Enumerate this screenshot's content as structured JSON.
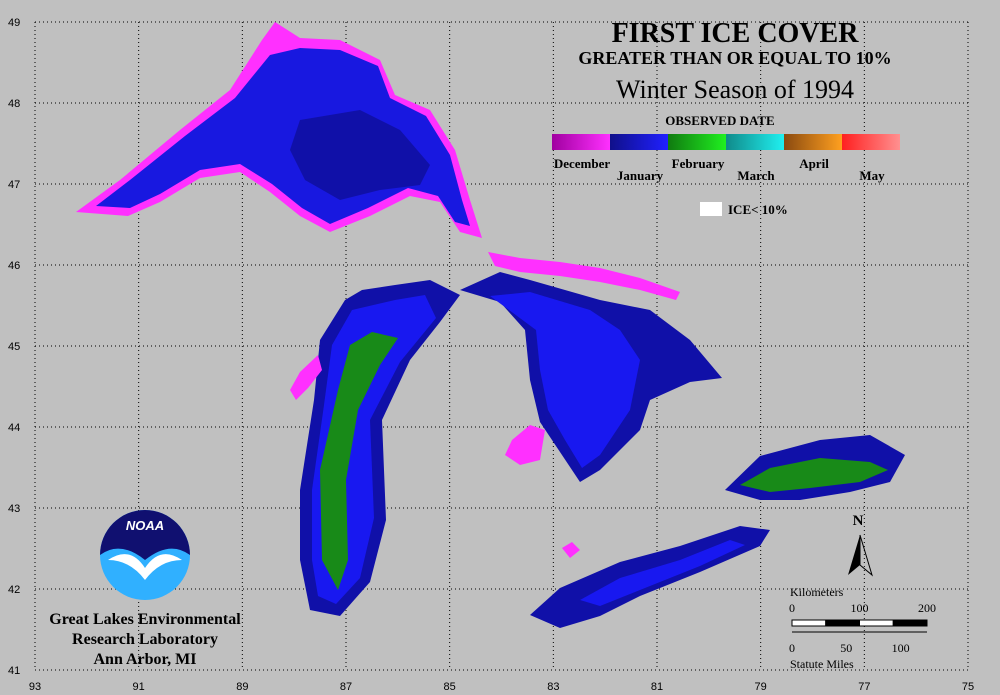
{
  "title": "FIRST ICE COVER",
  "subtitle": "GREATER THAN OR EQUAL TO 10%",
  "season": "Winter Season of 1994",
  "legend": {
    "title": "OBSERVED DATE",
    "months": [
      {
        "label": "December",
        "colors": [
          "#a000a0",
          "#ff30ff"
        ]
      },
      {
        "label": "January",
        "colors": [
          "#10108a",
          "#2020ff"
        ]
      },
      {
        "label": "February",
        "colors": [
          "#107a10",
          "#20f020"
        ]
      },
      {
        "label": "March",
        "colors": [
          "#108a8a",
          "#20f0f0"
        ]
      },
      {
        "label": "April",
        "colors": [
          "#8a4a10",
          "#ffa020"
        ]
      },
      {
        "label": "May",
        "colors": [
          "#ff2020",
          "#ff9090"
        ]
      }
    ],
    "ice_label": "ICE< 10%"
  },
  "latitudes": [
    49,
    48,
    47,
    46,
    45,
    44,
    43,
    42,
    41
  ],
  "longitudes": [
    93,
    91,
    89,
    87,
    85,
    83,
    81,
    79,
    77,
    75
  ],
  "north": "N",
  "scale": {
    "km_title": "Kilometers",
    "km_ticks": [
      0,
      100,
      200
    ],
    "mi_title": "Statute Miles",
    "mi_ticks": [
      0,
      50,
      100
    ]
  },
  "logo": "NOAA",
  "organization": [
    "Great Lakes Environmental",
    "Research Laboratory",
    "Ann Arbor, MI"
  ]
}
